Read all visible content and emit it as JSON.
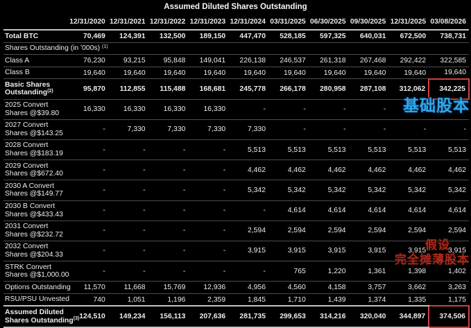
{
  "chart_data": {
    "type": "table",
    "title": "Assumed Diluted Shares Outstanding",
    "columns": [
      "12/31/2020",
      "12/31/2021",
      "12/31/2022",
      "12/31/2023",
      "12/31/2024",
      "03/31/2025",
      "06/30/2025",
      "09/30/2025",
      "12/31/2025",
      "03/08/2026"
    ],
    "rows": [
      {
        "name": "row-total-btc",
        "label": "Total BTC",
        "bold": true,
        "values": [
          "70,469",
          "124,391",
          "132,500",
          "189,150",
          "447,470",
          "528,185",
          "597,325",
          "640,031",
          "672,500",
          "738,731"
        ]
      },
      {
        "name": "row-shares-outstanding-section",
        "label": "Shares Outstanding (in '000s) ",
        "sup": "(1)",
        "section": true
      },
      {
        "name": "row-class-a",
        "label": "Class A",
        "values": [
          "76,230",
          "93,215",
          "95,848",
          "149,041",
          "226,138",
          "246,537",
          "261,318",
          "267,468",
          "292,422",
          "322,585"
        ]
      },
      {
        "name": "row-class-b",
        "label": "Class B",
        "values": [
          "19,640",
          "19,640",
          "19,640",
          "19,640",
          "19,640",
          "19,640",
          "19,640",
          "19,640",
          "19,640",
          "19,640"
        ]
      },
      {
        "name": "row-basic-shares-outstanding",
        "label": "Basic Shares",
        "label2": "Outstanding",
        "sup": "(2)",
        "bold": true,
        "highlight_col": 9,
        "values": [
          "95,870",
          "112,855",
          "115,488",
          "168,681",
          "245,778",
          "266,178",
          "280,958",
          "287,108",
          "312,062",
          "342,225"
        ]
      },
      {
        "name": "row-2025-convert",
        "label": "2025 Convert",
        "label2": "Shares @$39.80",
        "values": [
          "16,330",
          "16,330",
          "16,330",
          "16,330",
          "-",
          "-",
          "-",
          "-",
          "-",
          "-"
        ]
      },
      {
        "name": "row-2027-convert",
        "label": "2027 Convert",
        "label2": "Shares @$143.25",
        "values": [
          "-",
          "7,330",
          "7,330",
          "7,330",
          "7,330",
          "-",
          "-",
          "-",
          "-",
          "-"
        ]
      },
      {
        "name": "row-2028-convert",
        "label": "2028 Convert",
        "label2": "Shares @$183.19",
        "values": [
          "-",
          "-",
          "-",
          "-",
          "5,513",
          "5,513",
          "5,513",
          "5,513",
          "5,513",
          "5,513"
        ]
      },
      {
        "name": "row-2029-convert",
        "label": "2029 Convert",
        "label2": "Shares @$672.40",
        "values": [
          "-",
          "-",
          "-",
          "-",
          "4,462",
          "4,462",
          "4,462",
          "4,462",
          "4,462",
          "4,462"
        ]
      },
      {
        "name": "row-2030-a-convert",
        "label": "2030 A Convert",
        "label2": "Shares @$149.77",
        "values": [
          "-",
          "-",
          "-",
          "-",
          "5,342",
          "5,342",
          "5,342",
          "5,342",
          "5,342",
          "5,342"
        ]
      },
      {
        "name": "row-2030-b-convert",
        "label": "2030 B Convert",
        "label2": "Shares @$433.43",
        "values": [
          "-",
          "-",
          "-",
          "-",
          "-",
          "4,614",
          "4,614",
          "4,614",
          "4,614",
          "4,614"
        ]
      },
      {
        "name": "row-2031-convert",
        "label": "2031 Convert",
        "label2": "Shares @$232.72",
        "values": [
          "-",
          "-",
          "-",
          "-",
          "2,594",
          "2,594",
          "2,594",
          "2,594",
          "2,594",
          "2,594"
        ]
      },
      {
        "name": "row-2032-convert",
        "label": "2032 Convert",
        "label2": "Shares @$204.33",
        "values": [
          "-",
          "-",
          "-",
          "-",
          "3,915",
          "3,915",
          "3,915",
          "3,915",
          "3,915",
          "3,915"
        ]
      },
      {
        "name": "row-strk-convert",
        "label": "STRK Convert",
        "label2": "Shares @$1,000.00",
        "values": [
          "-",
          "-",
          "-",
          "-",
          "-",
          "765",
          "1,220",
          "1,361",
          "1,398",
          "1,402"
        ]
      },
      {
        "name": "row-options-outstanding",
        "label": "Options Outstanding",
        "values": [
          "11,570",
          "11,668",
          "15,769",
          "12,936",
          "4,956",
          "4,560",
          "4,158",
          "3,757",
          "3,662",
          "3,263"
        ]
      },
      {
        "name": "row-rsu-psu-unvested",
        "label": "RSU/PSU Unvested",
        "values": [
          "740",
          "1,051",
          "1,196",
          "2,359",
          "1,845",
          "1,710",
          "1,439",
          "1,374",
          "1,335",
          "1,175"
        ]
      },
      {
        "name": "row-assumed-diluted",
        "label": "Assumed Diluted",
        "label2": "Shares Outstanding",
        "sup": "(3)",
        "bold": true,
        "strong_top": true,
        "highlight_col": 9,
        "values": [
          "124,510",
          "149,234",
          "156,113",
          "207,636",
          "281,735",
          "299,653",
          "314,216",
          "320,040",
          "344,897",
          "374,506"
        ]
      }
    ],
    "layout": {
      "grid": "horizontal-lines-only",
      "highlight_boxes": [
        "basic-shares-outstanding @ 03/08/2026",
        "assumed-diluted @ 03/08/2026"
      ]
    }
  },
  "annotations": {
    "basic": {
      "text": "基础股本",
      "color": "#2fa9e9"
    },
    "diluted_line1": {
      "text": "假设",
      "color": "#a8291a"
    },
    "diluted_line2": {
      "text": "完全摊薄股本",
      "color": "#a8291a"
    }
  },
  "colors": {
    "background": "#000000",
    "text": "#ededed",
    "grid_line": "#4c4c4c",
    "strong_line": "#c4c4c4",
    "highlight_box": "#d24040"
  }
}
